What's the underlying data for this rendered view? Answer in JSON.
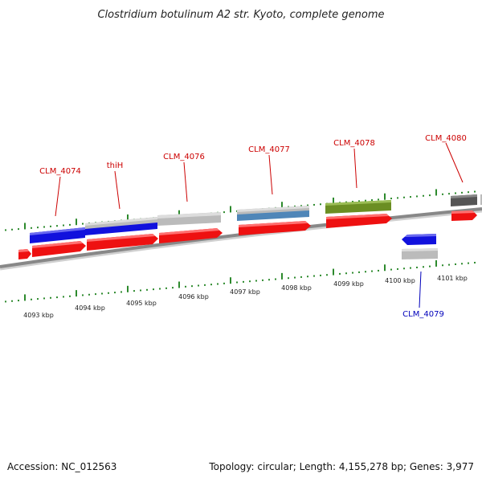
{
  "title": "Clostridium botulinum A2 str. Kyoto, complete genome",
  "footer": {
    "accession": "Accession: NC_012563",
    "summary": "Topology: circular; Length: 4,155,278 bp; Genes: 3,977"
  },
  "colors": {
    "backbone": "#888888",
    "tick": "#2d8a2d",
    "cds": "#ee1111",
    "label_forward": "#cc0000",
    "label_reverse": "#0000bb",
    "blue": "#1111dd",
    "grey": "#bbbbbb",
    "steel": "#4f86b8",
    "olive": "#6b8e23",
    "dark": "#555555"
  },
  "ticks": [
    {
      "label": "4093 kbp"
    },
    {
      "label": "4094 kbp"
    },
    {
      "label": "4095 kbp"
    },
    {
      "label": "4096 kbp"
    },
    {
      "label": "4097 kbp"
    },
    {
      "label": "4098 kbp"
    },
    {
      "label": "4099 kbp"
    },
    {
      "label": "4100 kbp"
    },
    {
      "label": "4101 kbp"
    }
  ],
  "genes": [
    {
      "label": "CLM_4074",
      "strand": "forward"
    },
    {
      "label": "thiH",
      "strand": "forward"
    },
    {
      "label": "CLM_4076",
      "strand": "forward"
    },
    {
      "label": "CLM_4077",
      "strand": "forward"
    },
    {
      "label": "CLM_4078",
      "strand": "forward"
    },
    {
      "label": "CLM_4080",
      "strand": "forward"
    },
    {
      "label": "CLM_4079",
      "strand": "reverse"
    }
  ]
}
